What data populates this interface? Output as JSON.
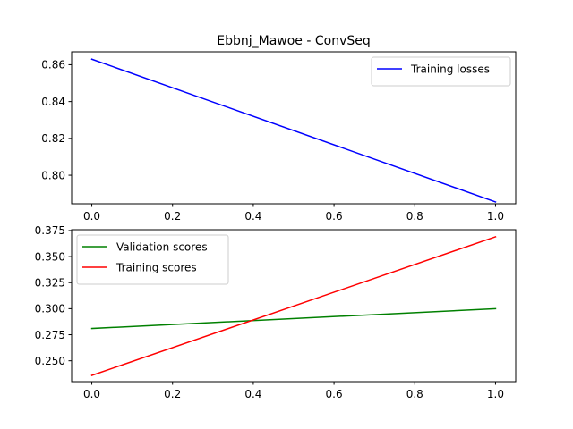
{
  "chart_data": [
    {
      "type": "line",
      "title": "Ebbnj_Mawoe - ConvSeq",
      "xlabel": "",
      "ylabel": "",
      "xlim": [
        -0.05,
        1.05
      ],
      "ylim": [
        0.7845,
        0.867
      ],
      "x_ticks": [
        0.0,
        0.2,
        0.4,
        0.6,
        0.8,
        1.0
      ],
      "x_tick_labels": [
        "0.0",
        "0.2",
        "0.4",
        "0.6",
        "0.8",
        "1.0"
      ],
      "y_ticks": [
        0.8,
        0.82,
        0.84,
        0.86
      ],
      "y_tick_labels": [
        "0.80",
        "0.82",
        "0.84",
        "0.86"
      ],
      "grid": false,
      "legend_position": "top-right",
      "series": [
        {
          "name": "Training losses",
          "color": "#0000ff",
          "x": [
            0,
            1
          ],
          "y": [
            0.863,
            0.7855
          ]
        }
      ]
    },
    {
      "type": "line",
      "title": "",
      "xlabel": "",
      "ylabel": "",
      "xlim": [
        -0.05,
        1.05
      ],
      "ylim": [
        0.23,
        0.3758
      ],
      "x_ticks": [
        0.0,
        0.2,
        0.4,
        0.6,
        0.8,
        1.0
      ],
      "x_tick_labels": [
        "0.0",
        "0.2",
        "0.4",
        "0.6",
        "0.8",
        "1.0"
      ],
      "y_ticks": [
        0.25,
        0.275,
        0.3,
        0.325,
        0.35,
        0.375
      ],
      "y_tick_labels": [
        "0.250",
        "0.275",
        "0.300",
        "0.325",
        "0.350",
        "0.375"
      ],
      "grid": false,
      "legend_position": "top-left",
      "series": [
        {
          "name": "Validation scores",
          "color": "#008000",
          "x": [
            0,
            1
          ],
          "y": [
            0.281,
            0.3
          ]
        },
        {
          "name": "Training scores",
          "color": "#ff0000",
          "x": [
            0,
            1
          ],
          "y": [
            0.236,
            0.369
          ]
        }
      ]
    }
  ]
}
